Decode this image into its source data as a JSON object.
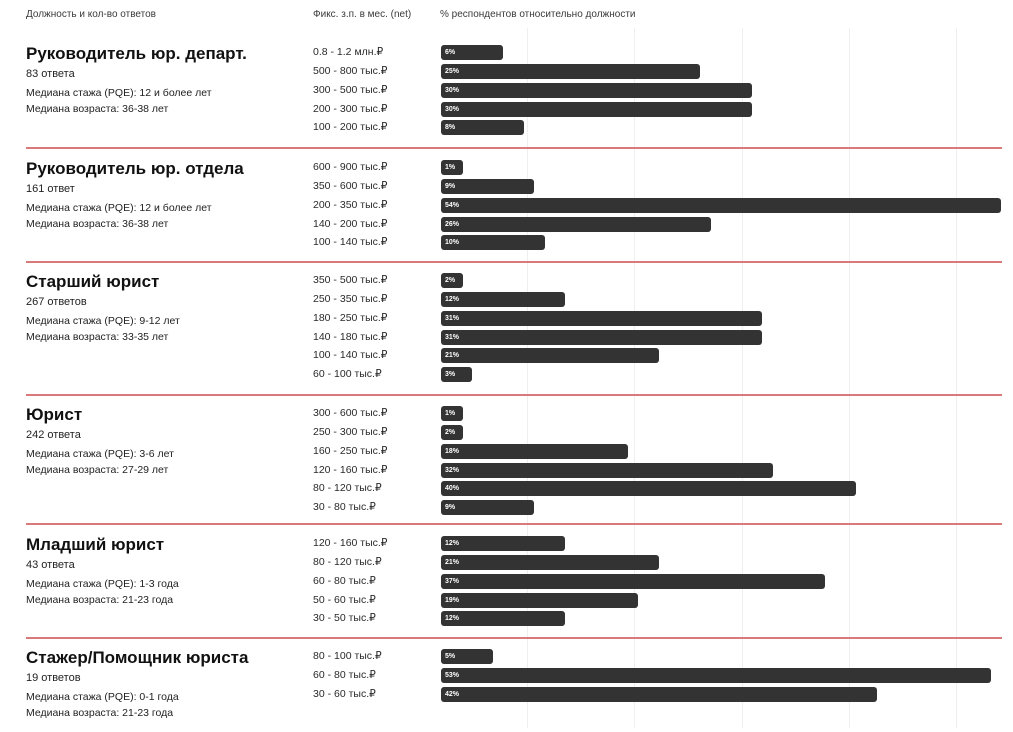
{
  "header": {
    "col_role": "Должность и кол-во ответов",
    "col_salary": "Фикс. з.п. в мес. (net)",
    "col_percent": "% респондентов относительно должности"
  },
  "chart_data": {
    "type": "bar",
    "orientation": "horizontal",
    "value_unit": "%",
    "xlim": [
      0,
      54
    ],
    "grid": true,
    "groups": [
      {
        "title": "Руководитель юр. департ.",
        "responses": "83 ответа",
        "median_experience": "Медиана стажа (PQE): 12 и более лет",
        "median_age": "Медиана возраста: 36-38 лет",
        "categories": [
          "0.8 - 1.2 млн.₽",
          "500 - 800 тыс.₽",
          "300 - 500 тыс.₽",
          "200 - 300 тыс.₽",
          "100 - 200 тыс.₽"
        ],
        "values": [
          6,
          25,
          30,
          30,
          8
        ],
        "labels": [
          "6%",
          "25%",
          "30%",
          "30%",
          "8%"
        ]
      },
      {
        "title": "Руководитель юр. отдела",
        "responses": "161 ответ",
        "median_experience": "Медиана стажа (PQE): 12 и более лет",
        "median_age": "Медиана возраста: 36-38 лет",
        "categories": [
          "600 - 900 тыс.₽",
          "350 - 600 тыс.₽",
          "200 - 350 тыс.₽",
          "140 - 200 тыс.₽",
          "100 - 140 тыс.₽"
        ],
        "values": [
          1,
          9,
          54,
          26,
          10
        ],
        "labels": [
          "1%",
          "9%",
          "54%",
          "26%",
          "10%"
        ]
      },
      {
        "title": "Старший юрист",
        "responses": "267 ответов",
        "median_experience": "Медиана стажа (PQE): 9-12 лет",
        "median_age": "Медиана возраста: 33-35 лет",
        "categories": [
          "350 - 500 тыс.₽",
          "250 - 350 тыс.₽",
          "180 - 250 тыс.₽",
          "140 - 180 тыс.₽",
          "100 - 140 тыс.₽",
          "60 - 100 тыс.₽"
        ],
        "values": [
          2,
          12,
          31,
          31,
          21,
          3
        ],
        "labels": [
          "2%",
          "12%",
          "31%",
          "31%",
          "21%",
          "3%"
        ]
      },
      {
        "title": "Юрист",
        "responses": "242 ответа",
        "median_experience": "Медиана стажа (PQE): 3-6 лет",
        "median_age": "Медиана возраста: 27-29 лет",
        "categories": [
          "300 - 600 тыс.₽",
          "250 - 300 тыс.₽",
          "160 - 250 тыс.₽",
          "120 - 160 тыс.₽",
          "80 - 120 тыс.₽",
          "30 - 80 тыс.₽"
        ],
        "values": [
          1,
          2,
          18,
          32,
          40,
          9
        ],
        "labels": [
          "1%",
          "2%",
          "18%",
          "32%",
          "40%",
          "9%"
        ]
      },
      {
        "title": "Младший юрист",
        "responses": "43 ответа",
        "median_experience": "Медиана стажа (PQE): 1-3 года",
        "median_age": "Медиана возраста: 21-23 года",
        "categories": [
          "120 - 160 тыс.₽",
          "80 - 120 тыс.₽",
          "60 - 80 тыс.₽",
          "50 - 60 тыс.₽",
          "30 - 50 тыс.₽"
        ],
        "values": [
          12,
          21,
          37,
          19,
          12
        ],
        "labels": [
          "12%",
          "21%",
          "37%",
          "19%",
          "12%"
        ]
      },
      {
        "title": "Стажер/Помощник юриста",
        "responses": "19 ответов",
        "median_experience": "Медиана стажа (PQE): 0-1 года",
        "median_age": "Медиана возраста: 21-23 года",
        "categories": [
          "80 - 100 тыс.₽",
          "60 - 80 тыс.₽",
          "30 - 60 тыс.₽"
        ],
        "values": [
          5,
          53,
          42
        ],
        "labels": [
          "5%",
          "53%",
          "42%"
        ]
      }
    ]
  },
  "colors": {
    "bar": "#333333",
    "bar_label": "#ffffff",
    "separator": "#d9797a",
    "grid": "#efefef"
  }
}
